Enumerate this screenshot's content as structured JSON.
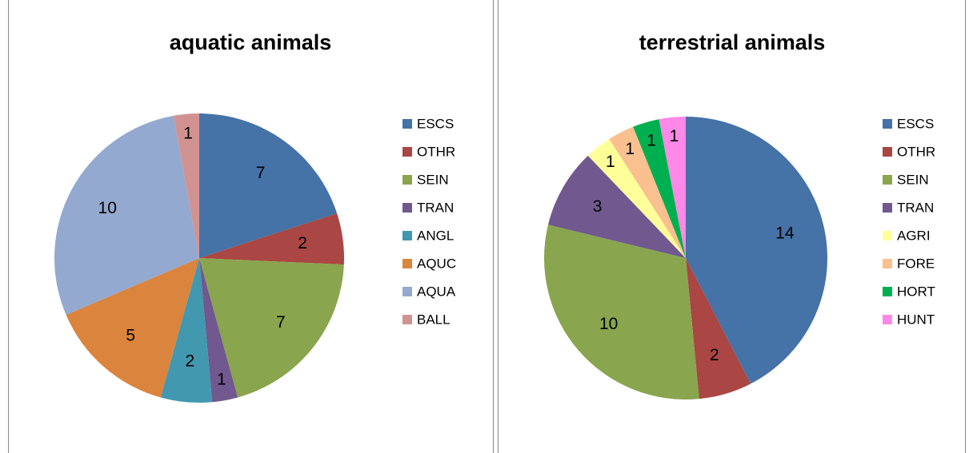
{
  "chart_data": [
    {
      "type": "pie",
      "title": "aquatic animals",
      "categories": [
        "ESCS",
        "OTHR",
        "SEIN",
        "TRAN",
        "ANGL",
        "AQUC",
        "AQUA",
        "BALL"
      ],
      "values": [
        7,
        2,
        7,
        1,
        2,
        5,
        10,
        1
      ],
      "colors": [
        "#4572a7",
        "#aa4643",
        "#89a54e",
        "#71588f",
        "#4198af",
        "#db843d",
        "#93a9cf",
        "#d19392"
      ]
    },
    {
      "type": "pie",
      "title": "terrestrial animals",
      "categories": [
        "ESCS",
        "OTHR",
        "SEIN",
        "TRAN",
        "AGRI",
        "FORE",
        "HORT",
        "HUNT"
      ],
      "values": [
        14,
        2,
        10,
        3,
        1,
        1,
        1,
        1
      ],
      "colors": [
        "#4572a7",
        "#aa4643",
        "#89a54e",
        "#71588f",
        "#ffff99",
        "#fac090",
        "#00b050",
        "#ff88e8"
      ]
    }
  ]
}
